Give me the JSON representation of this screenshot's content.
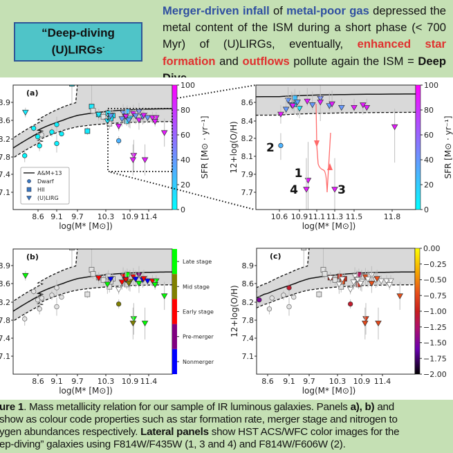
{
  "header": {
    "box_title_line1": "“Deep-diving",
    "box_title_line2": "(U)LIRGs",
    "box_title_tail": "-",
    "summary": {
      "s1": "Merger-driven infall",
      "s2": " of ",
      "s3": "metal-poor gas",
      "s4": " depressed the metal content of the ISM during a short phase (< 700 Myr) of (U)LIRGs, eventually, ",
      "s5": "enhanced star formation",
      "s6": " and ",
      "s7": "outflows",
      "s8": " pollute again the ISM = ",
      "s9": "Deep Dive"
    },
    "colors": {
      "highlight_blue": "#2f4fa0",
      "highlight_red": "#e0302e",
      "box_fill": "#4fc4c8",
      "background": "#c5e0b4"
    }
  },
  "caption": {
    "l1a": "ure 1",
    "l1b": ". Mass metallicity relation for our sample of IR luminous galaxies. Panels ",
    "l1c": "a), b)",
    "l1d": " and",
    "l2": "show as colour code properties such as star formation rate, merger stage and nitrogen to",
    "l3a": "ygen abundances respectively. ",
    "l3b": "Lateral panels",
    "l3c": " show HST ACS/WFC color images for the",
    "l4": "ep-diving” galaxies using F814W/F435W (1, 3 and 4) and F814W/F606W (2)."
  },
  "chart_data": {
    "type": "scatter",
    "xlabel": "log(M* [M⊙])",
    "ylabel": "12+log(O/H)",
    "relation": {
      "name": "A&M+13",
      "style": "solid line with dashed scatter band"
    },
    "legend": {
      "placement": "lower-left of panel (a)",
      "entries": [
        "A&M+13",
        "Dwarf",
        "HII",
        "(U)LIRG"
      ]
    },
    "panels": [
      {
        "label": "(a)",
        "color_by": "sfr",
        "xticks": [
          "8.6",
          "9.1",
          "9.7",
          "10.3",
          "10.9",
          "11.4"
        ],
        "yticks": [
          "8.9",
          "8.6",
          "8.2",
          "7.8",
          "7.4",
          "7.1"
        ],
        "colorbar": {
          "label": "SFR [M⊙ · yr⁻¹]",
          "ticks": [
            "100",
            "80",
            "60",
            "40",
            "20",
            "0"
          ],
          "colormap": "cool",
          "range": [
            0,
            100
          ]
        }
      },
      {
        "label": "",
        "color_by": "sfr",
        "xticks": [
          "10.6",
          "10.9",
          "11.1",
          "11.3",
          "11.5",
          "11.8"
        ],
        "yticks": [
          "8.6",
          "8.4",
          "8.2",
          "8.1",
          "7.9",
          "7.7"
        ],
        "colorbar": {
          "label": "SFR [M⊙ · yr⁻¹]",
          "ticks": [
            "100",
            "80",
            "60",
            "40",
            "20",
            "0"
          ],
          "colormap": "cool",
          "range": [
            0,
            100
          ]
        },
        "annotations": [
          {
            "text": "2",
            "m": 10.63,
            "oh": 8.15
          },
          {
            "text": "1",
            "m": 11.0,
            "oh": 7.84
          },
          {
            "text": "4",
            "m": 10.98,
            "oh": 7.73
          },
          {
            "text": "3",
            "m": 11.3,
            "oh": 7.73
          }
        ]
      },
      {
        "label": "(b)",
        "color_by": "stage",
        "xticks": [
          "8.6",
          "9.1",
          "9.7",
          "10.3",
          "10.9",
          "11.4"
        ],
        "yticks": [
          "8.9",
          "8.6",
          "8.2",
          "7.8",
          "7.4",
          "7.1"
        ],
        "colorbar": {
          "categories": [
            "Late stage",
            "Mid stage",
            "Early stage",
            "Pre-merger",
            "Nonmerger"
          ],
          "colors": [
            "#00ff00",
            "#808000",
            "#ff0000",
            "#800080",
            "#0000ff"
          ]
        }
      },
      {
        "label": "(c)",
        "color_by": "no",
        "xticks": [
          "8.6",
          "9.1",
          "9.7",
          "10.3",
          "10.9",
          "11.4"
        ],
        "yticks": [
          "8.9",
          "8.6",
          "8.2",
          "7.8",
          "7.4",
          "7.1"
        ],
        "colorbar": {
          "ticks": [
            "0.00",
            "−0.25",
            "−0.50",
            "−0.75",
            "−1.00",
            "−1.25",
            "−1.50",
            "−1.75",
            "−2.00"
          ],
          "colormap": "gnuplot",
          "range": [
            -2.0,
            0.0
          ]
        }
      }
    ],
    "galaxies": [
      {
        "type": "dwarf",
        "m": 8.08,
        "oh": 7.83,
        "oh_err": 0.15,
        "sfr": 2,
        "stage": null,
        "no": null
      },
      {
        "type": "dwarf",
        "m": 8.32,
        "oh": 8.43,
        "oh_err": 0.08,
        "sfr": 3,
        "stage": null,
        "no": null
      },
      {
        "type": "dwarf",
        "m": 8.43,
        "oh": 8.25,
        "oh_err": 0.08,
        "sfr": 3,
        "stage": null,
        "no": -1.5
      },
      {
        "type": "dwarf",
        "m": 8.64,
        "oh": 8.05,
        "oh_err": 0.12,
        "sfr": 3,
        "stage": null,
        "no": null
      },
      {
        "type": "dwarf",
        "m": 8.7,
        "oh": 8.29,
        "oh_err": 0.08,
        "sfr": null,
        "stage": null,
        "no": null
      },
      {
        "type": "dwarf",
        "m": 8.97,
        "oh": 8.35,
        "oh_err": 0.1,
        "sfr": 4,
        "stage": null,
        "no": null
      },
      {
        "type": "dwarf",
        "m": 9.1,
        "oh": 8.51,
        "oh_err": 0.15,
        "sfr": 5,
        "stage": null,
        "no": -1.05
      },
      {
        "type": "dwarf",
        "m": 9.1,
        "oh": 8.1,
        "oh_err": 0.2,
        "sfr": 5,
        "stage": null,
        "no": null
      },
      {
        "type": "dwarf",
        "m": 9.24,
        "oh": 8.31,
        "oh_err": 0.05,
        "sfr": 5,
        "stage": null,
        "no": null
      },
      {
        "type": "dwarf",
        "m": 10.62,
        "oh": 8.16,
        "oh_err": 0.1,
        "sfr": 30,
        "stage": "Mid stage",
        "no": -1.05
      },
      {
        "type": "hii",
        "m": 9.54,
        "oh": 8.91,
        "oh_err": 0.05,
        "sfr": 8,
        "stage": null,
        "no": null
      },
      {
        "type": "hii",
        "m": 10.0,
        "oh": 8.83,
        "oh_err": 0.08,
        "sfr": 8,
        "stage": null,
        "no": null
      },
      {
        "type": "hii",
        "m": 10.03,
        "oh": 8.76,
        "oh_err": 0.08,
        "sfr": null,
        "stage": null,
        "no": null
      },
      {
        "type": "hii",
        "m": 9.91,
        "oh": 8.37,
        "oh_err": 0.08,
        "sfr": 8,
        "stage": null,
        "no": null
      },
      {
        "type": "hii",
        "m": 10.15,
        "oh": 8.7,
        "oh_err": 0.08,
        "sfr": 8,
        "stage": null,
        "no": -0.95
      },
      {
        "type": "hii",
        "m": 10.25,
        "oh": 8.66,
        "oh_err": 0.1,
        "sfr": null,
        "stage": null,
        "no": null
      },
      {
        "type": "hii",
        "m": 10.36,
        "oh": 8.72,
        "oh_err": 0.1,
        "sfr": 10,
        "stage": null,
        "no": -0.9
      },
      {
        "type": "hii",
        "m": 10.47,
        "oh": 8.68,
        "oh_err": 0.1,
        "sfr": 12,
        "stage": null,
        "no": -0.95
      },
      {
        "type": "hii",
        "m": 10.42,
        "oh": 8.63,
        "oh_err": 0.1,
        "sfr": 10,
        "stage": null,
        "no": -0.7
      },
      {
        "type": "hii",
        "m": 10.83,
        "oh": 8.75,
        "oh_err": 0.1,
        "sfr": 25,
        "stage": "Late stage",
        "no": -1.2
      },
      {
        "type": "hii",
        "m": 10.39,
        "oh": 8.53,
        "oh_err": 0.12,
        "sfr": null,
        "stage": null,
        "no": null
      },
      {
        "type": "hii",
        "m": 10.82,
        "oh": 8.58,
        "oh_err": 0.1,
        "sfr": 15,
        "stage": null,
        "no": -0.9
      },
      {
        "type": "ulirg",
        "m": 8.1,
        "oh": 8.73,
        "oh_err": 0.08,
        "sfr": 8,
        "stage": "Late stage",
        "no": null
      },
      {
        "type": "ulirg",
        "m": 10.15,
        "oh": 8.69,
        "oh_err": 0.1,
        "sfr": 8,
        "stage": "Early stage",
        "no": null
      },
      {
        "type": "ulirg",
        "m": 10.34,
        "oh": 8.58,
        "oh_err": 0.2,
        "sfr": 10,
        "stage": "Late stage",
        "no": null
      },
      {
        "type": "ulirg",
        "m": 10.62,
        "oh": 8.47,
        "oh_err": 0.1,
        "sfr": 90,
        "stage": null,
        "no": null
      },
      {
        "type": "ulirg",
        "m": 10.73,
        "oh": 8.72,
        "oh_err": 0.15,
        "sfr": 40,
        "stage": "Early stage",
        "no": null
      },
      {
        "type": "ulirg",
        "m": 10.78,
        "oh": 8.67,
        "oh_err": 0.15,
        "sfr": 45,
        "stage": "Pre-merger",
        "no": null
      },
      {
        "type": "ulirg",
        "m": 10.8,
        "oh": 8.66,
        "oh_err": 0.15,
        "sfr": 90,
        "stage": "Early stage",
        "no": null
      },
      {
        "type": "ulirg",
        "m": 10.9,
        "oh": 8.63,
        "oh_err": 0.2,
        "sfr": 10,
        "stage": "Mid stage",
        "no": null
      },
      {
        "type": "ulirg",
        "m": 10.99,
        "oh": 8.71,
        "oh_err": 0.15,
        "sfr": 90,
        "stage": "Early stage",
        "no": -0.7
      },
      {
        "type": "ulirg",
        "m": 11.05,
        "oh": 8.67,
        "oh_err": 0.15,
        "sfr": 40,
        "stage": "Nonmerger",
        "no": null
      },
      {
        "type": "ulirg",
        "m": 11.14,
        "oh": 8.74,
        "oh_err": 0.15,
        "sfr": 45,
        "stage": "Pre-merger",
        "no": null
      },
      {
        "type": "ulirg",
        "m": 11.14,
        "oh": 8.6,
        "oh_err": 0.2,
        "sfr": 90,
        "stage": "Late stage",
        "no": -0.7
      },
      {
        "type": "ulirg",
        "m": 11.24,
        "oh": 8.66,
        "oh_err": 0.15,
        "sfr": 40,
        "stage": "Nonmerger",
        "no": null
      },
      {
        "type": "ulirg",
        "m": 11.27,
        "oh": 8.68,
        "oh_err": 0.15,
        "sfr": 90,
        "stage": "Early stage",
        "no": -0.7
      },
      {
        "type": "ulirg",
        "m": 11.37,
        "oh": 8.64,
        "oh_err": 0.1,
        "sfr": 40,
        "stage": "Nonmerger",
        "no": null
      },
      {
        "type": "ulirg",
        "m": 11.5,
        "oh": 8.64,
        "oh_err": 0.1,
        "sfr": 90,
        "stage": "Early stage",
        "no": null
      },
      {
        "type": "ulirg",
        "m": 11.6,
        "oh": 8.64,
        "oh_err": 0.1,
        "sfr": 90,
        "stage": "Late stage",
        "no": null
      },
      {
        "type": "ulirg",
        "m": 11.57,
        "oh": 8.57,
        "oh_err": 0.1,
        "sfr": 90,
        "stage": "Late stage",
        "no": null
      },
      {
        "type": "ulirg",
        "m": 11.82,
        "oh": 8.33,
        "oh_err": 0.3,
        "sfr": 90,
        "stage": "Late stage",
        "no": -0.7
      },
      {
        "type": "ulirg",
        "m": 11.0,
        "oh": 7.83,
        "oh_err": 0.35,
        "sfr": 90,
        "stage": "Late stage",
        "no": -0.8
      },
      {
        "type": "ulirg",
        "m": 10.98,
        "oh": 7.73,
        "oh_err": 0.35,
        "sfr": 90,
        "stage": "Mid stage",
        "no": -0.75
      },
      {
        "type": "ulirg",
        "m": 11.3,
        "oh": 7.73,
        "oh_err": 0.35,
        "sfr": 90,
        "stage": "Late stage",
        "no": -0.75
      },
      {
        "type": "ulirg",
        "m": 10.7,
        "oh": 8.62,
        "oh_err": 0.15,
        "sfr": 40,
        "stage": "Early stage",
        "no": null
      },
      {
        "type": "ulirg",
        "m": 10.87,
        "oh": 8.6,
        "oh_err": 0.15,
        "sfr": 35,
        "stage": "Mid stage",
        "no": null
      },
      {
        "type": "ulirg",
        "m": 10.42,
        "oh": 8.67,
        "oh_err": 0.1,
        "sfr": 40,
        "stage": "Nonmerger",
        "no": null
      }
    ]
  }
}
